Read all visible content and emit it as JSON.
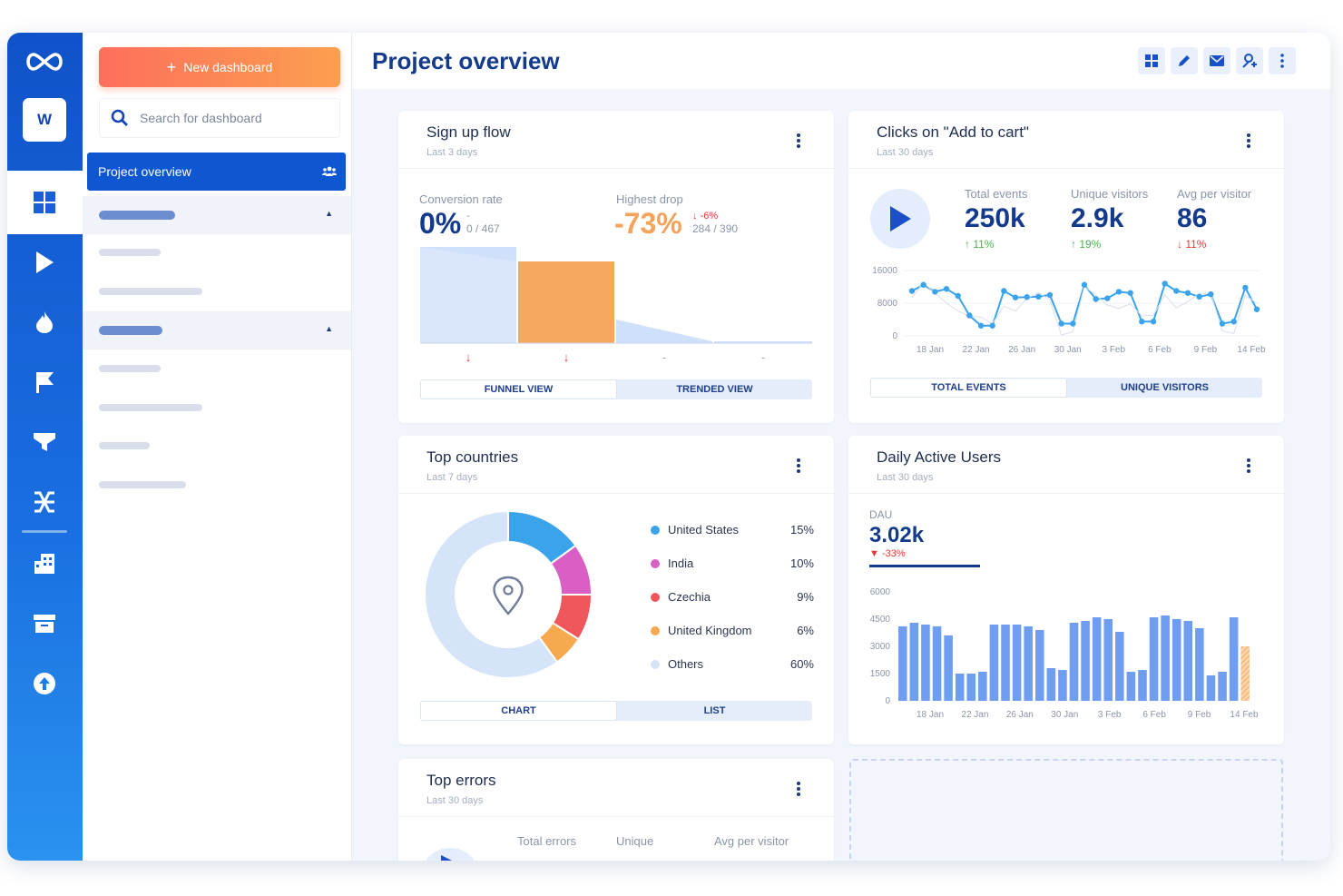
{
  "app": {
    "workspace_initial": "W"
  },
  "sidebar": {
    "new_button": "New dashboard",
    "search_placeholder": "Search for dashboard",
    "active_item": "Project overview"
  },
  "header": {
    "title": "Project overview"
  },
  "signup": {
    "title": "Sign up flow",
    "subtitle": "Last 3 days",
    "conv_label": "Conversion rate",
    "conv_value": "0%",
    "conv_delta": "-",
    "conv_frac": "0 / 467",
    "drop_label": "Highest drop",
    "drop_value": "-73%",
    "drop_delta": "-6%",
    "drop_frac": "284 / 390",
    "arrows": [
      "↓",
      "↓",
      "-",
      "-"
    ],
    "tab_funnel": "FUNNEL VIEW",
    "tab_trended": "TRENDED VIEW",
    "funnel": [
      100,
      73,
      8,
      1
    ]
  },
  "clicks": {
    "title": "Clicks on \"Add to cart\"",
    "subtitle": "Last 30 days",
    "total_label": "Total events",
    "total_value": "250k",
    "total_delta": "↑ 11%",
    "unique_label": "Unique visitors",
    "unique_value": "2.9k",
    "unique_delta": "↑ 19%",
    "avg_label": "Avg per visitor",
    "avg_value": "86",
    "avg_delta": "↓ 11%",
    "tab_total": "TOTAL EVENTS",
    "tab_unique": "UNIQUE VISITORS",
    "colors": {
      "up": "#4caf50",
      "down": "#e53935"
    }
  },
  "countries": {
    "title": "Top countries",
    "subtitle": "Last 7 days",
    "items": [
      {
        "name": "United States",
        "pct": "15%",
        "color": "#3aa3ea"
      },
      {
        "name": "India",
        "pct": "10%",
        "color": "#d95fc4"
      },
      {
        "name": "Czechia",
        "pct": "9%",
        "color": "#f0575a"
      },
      {
        "name": "United Kingdom",
        "pct": "6%",
        "color": "#f6a94e"
      },
      {
        "name": "Others",
        "pct": "60%",
        "color": "#d6e4fa"
      }
    ],
    "tab_chart": "CHART",
    "tab_list": "LIST"
  },
  "dau": {
    "title": "Daily Active Users",
    "subtitle": "Last 30 days",
    "label": "DAU",
    "value": "3.02k",
    "delta": "-33%"
  },
  "errors": {
    "title": "Top errors",
    "subtitle": "Last 30 days",
    "col_total": "Total errors",
    "col_unique": "Unique",
    "col_avg": "Avg per visitor"
  },
  "chart_data": [
    {
      "type": "line",
      "title": "Clicks on \"Add to cart\"",
      "ylim": [
        0,
        16000
      ],
      "yticks": [
        "16000",
        "8000",
        "0"
      ],
      "xticks": [
        "18 Jan",
        "22 Jan",
        "26 Jan",
        "30 Jan",
        "3 Feb",
        "6 Feb",
        "9 Feb",
        "14 Feb"
      ],
      "series": [
        {
          "values": [
            11000,
            12500,
            10800,
            11500,
            9800,
            5000,
            2500,
            2500,
            11000,
            9400,
            9500,
            9600,
            10000,
            3000,
            3000,
            12500,
            9000,
            9200,
            10800,
            10500,
            3500,
            3500,
            12800,
            11000,
            10500,
            9600,
            10200,
            3000,
            3500,
            11800,
            6500
          ]
        }
      ]
    },
    {
      "type": "bar",
      "title": "Daily Active Users",
      "ylim": [
        0,
        6000
      ],
      "yticks": [
        "6000",
        "4500",
        "3000",
        "1500",
        "0"
      ],
      "xticks": [
        "18 Jan",
        "22 Jan",
        "26 Jan",
        "30 Jan",
        "3 Feb",
        "6 Feb",
        "9 Feb",
        "14 Feb"
      ],
      "values": [
        4100,
        4300,
        4200,
        4100,
        3600,
        1500,
        1500,
        1600,
        4200,
        4200,
        4200,
        4100,
        3900,
        1800,
        1700,
        4300,
        4400,
        4600,
        4500,
        3800,
        1600,
        1700,
        4600,
        4700,
        4500,
        4400,
        4000,
        1400,
        1600,
        4600,
        3000
      ],
      "last_bar_partial": true
    }
  ]
}
